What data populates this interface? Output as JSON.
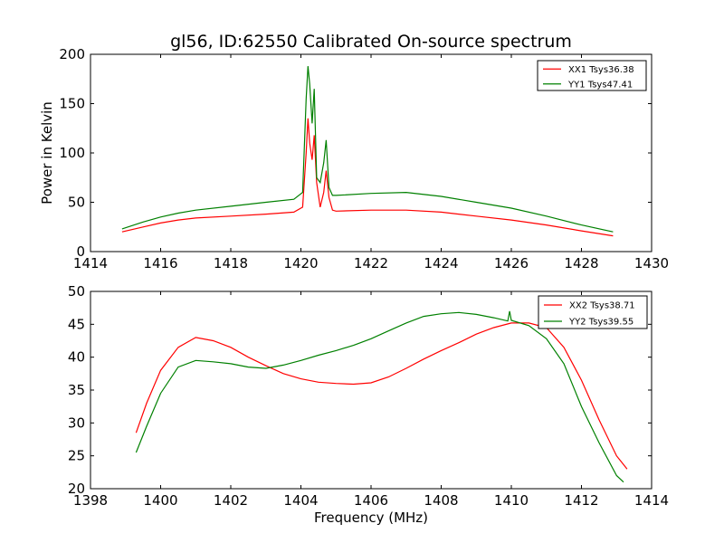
{
  "figure": {
    "title": "gl56, ID:62550 Calibrated On-source spectrum",
    "xlabel": "Frequency (MHz)"
  },
  "chart_data": [
    {
      "type": "line",
      "ylabel": "Power in Kelvin",
      "xlim": [
        1414,
        1430
      ],
      "ylim": [
        0,
        200
      ],
      "xticks": [
        1414,
        1416,
        1418,
        1420,
        1422,
        1424,
        1426,
        1428,
        1430
      ],
      "yticks": [
        0,
        50,
        100,
        150,
        200
      ],
      "grid": false,
      "legend": "top-right",
      "series": [
        {
          "name": "XX1 Tsys36.38",
          "color": "#ff0000",
          "x": [
            1414.9,
            1415.5,
            1416.0,
            1416.5,
            1417.0,
            1418.0,
            1419.0,
            1419.8,
            1420.05,
            1420.15,
            1420.2,
            1420.25,
            1420.32,
            1420.38,
            1420.45,
            1420.55,
            1420.65,
            1420.72,
            1420.8,
            1420.9,
            1421.0,
            1422.0,
            1423.0,
            1424.0,
            1425.0,
            1426.0,
            1427.0,
            1428.0,
            1428.9
          ],
          "y": [
            20,
            25,
            29,
            32,
            34,
            36,
            38,
            40,
            45,
            100,
            135,
            110,
            93,
            118,
            70,
            45,
            60,
            82,
            55,
            42,
            41,
            42,
            42,
            40,
            36,
            32,
            27,
            21,
            16
          ]
        },
        {
          "name": "YY1 Tsys47.41",
          "color": "#008000",
          "x": [
            1414.9,
            1415.5,
            1416.0,
            1416.5,
            1417.0,
            1418.0,
            1419.0,
            1419.8,
            1420.05,
            1420.15,
            1420.2,
            1420.25,
            1420.32,
            1420.38,
            1420.45,
            1420.55,
            1420.65,
            1420.72,
            1420.8,
            1420.9,
            1421.0,
            1422.0,
            1423.0,
            1424.0,
            1425.0,
            1426.0,
            1427.0,
            1428.0,
            1428.9
          ],
          "y": [
            23,
            30,
            35,
            39,
            42,
            46,
            50,
            53,
            60,
            155,
            188,
            170,
            130,
            165,
            75,
            70,
            90,
            113,
            65,
            57,
            57,
            59,
            60,
            56,
            50,
            44,
            36,
            27,
            20
          ]
        }
      ]
    },
    {
      "type": "line",
      "ylabel": "",
      "xlim": [
        1398,
        1414
      ],
      "ylim": [
        20,
        50
      ],
      "xticks": [
        1398,
        1400,
        1402,
        1404,
        1406,
        1408,
        1410,
        1412,
        1414
      ],
      "yticks": [
        20,
        25,
        30,
        35,
        40,
        45,
        50
      ],
      "grid": false,
      "legend": "top-right",
      "series": [
        {
          "name": "XX2 Tsys38.71",
          "color": "#ff0000",
          "x": [
            1399.3,
            1399.6,
            1400.0,
            1400.5,
            1401.0,
            1401.5,
            1402.0,
            1402.5,
            1403.0,
            1403.5,
            1404.0,
            1404.5,
            1405.0,
            1405.5,
            1406.0,
            1406.5,
            1407.0,
            1407.5,
            1408.0,
            1408.5,
            1409.0,
            1409.5,
            1410.0,
            1410.5,
            1411.0,
            1411.5,
            1412.0,
            1412.5,
            1413.0,
            1413.3
          ],
          "y": [
            28.5,
            33,
            38,
            41.5,
            43,
            42.5,
            41.5,
            40,
            38.7,
            37.5,
            36.7,
            36.2,
            36.0,
            35.9,
            36.1,
            37,
            38.3,
            39.7,
            41.0,
            42.2,
            43.5,
            44.5,
            45.2,
            45.2,
            44.5,
            41.5,
            36.5,
            30.5,
            25,
            23
          ]
        },
        {
          "name": "YY2 Tsys39.55",
          "color": "#008000",
          "x": [
            1399.3,
            1399.6,
            1400.0,
            1400.5,
            1401.0,
            1401.5,
            1402.0,
            1402.5,
            1403.0,
            1403.5,
            1404.0,
            1404.5,
            1405.0,
            1405.5,
            1406.0,
            1406.5,
            1407.0,
            1407.5,
            1408.0,
            1408.5,
            1409.0,
            1409.5,
            1409.9,
            1409.95,
            1410.0,
            1410.5,
            1411.0,
            1411.5,
            1412.0,
            1412.5,
            1413.0,
            1413.2
          ],
          "y": [
            25.5,
            29.5,
            34.5,
            38.5,
            39.5,
            39.3,
            39.0,
            38.5,
            38.3,
            38.8,
            39.5,
            40.3,
            41.0,
            41.8,
            42.8,
            44.0,
            45.2,
            46.2,
            46.6,
            46.8,
            46.5,
            46.0,
            45.5,
            47.0,
            45.6,
            44.8,
            42.8,
            39.0,
            32.5,
            27.0,
            22.0,
            21.0
          ]
        }
      ]
    }
  ]
}
